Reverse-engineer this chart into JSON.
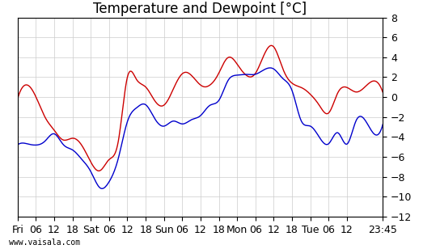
{
  "title": "Temperature and Dewpoint [°C]",
  "ylabel": "",
  "ylim": [
    -12,
    8
  ],
  "yticks": [
    -12,
    -10,
    -8,
    -6,
    -4,
    -2,
    0,
    2,
    4,
    6,
    8
  ],
  "temp_color": "#cc0000",
  "dewp_color": "#0000cc",
  "background_color": "#ffffff",
  "grid_color": "#cccccc",
  "watermark": "www.vaisala.com",
  "x_tick_labels": [
    "Fri",
    "06",
    "12",
    "18",
    "Sat",
    "06",
    "12",
    "18",
    "Sun",
    "06",
    "12",
    "18",
    "Mon",
    "06",
    "12",
    "18",
    "Tue",
    "06",
    "12",
    "23:45"
  ],
  "title_fontsize": 12,
  "tick_fontsize": 9,
  "line_width": 1.0
}
